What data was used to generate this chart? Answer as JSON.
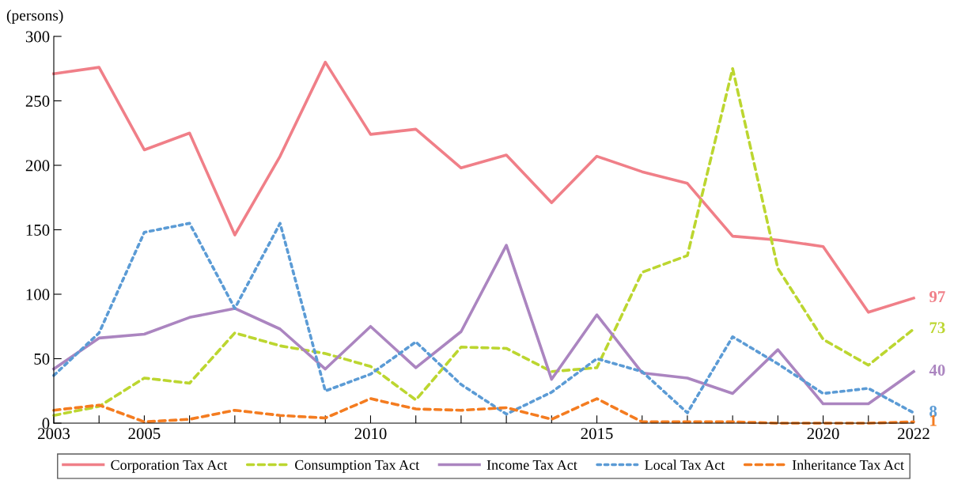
{
  "chart_data": {
    "type": "line",
    "ylabel": "(persons)",
    "x": [
      2003,
      2004,
      2005,
      2006,
      2007,
      2008,
      2009,
      2010,
      2011,
      2012,
      2013,
      2014,
      2015,
      2016,
      2017,
      2018,
      2019,
      2020,
      2021,
      2022
    ],
    "xlim": [
      2003,
      2022
    ],
    "xticks": [
      2003,
      {
        "value": 2004,
        "label": null
      },
      2005,
      {
        "value": 2006,
        "label": null
      },
      {
        "value": 2007,
        "label": null
      },
      {
        "value": 2008,
        "label": null
      },
      {
        "value": 2009,
        "label": null
      },
      2010,
      {
        "value": 2011,
        "label": null
      },
      {
        "value": 2012,
        "label": null
      },
      {
        "value": 2013,
        "label": null
      },
      {
        "value": 2014,
        "label": null
      },
      2015,
      {
        "value": 2016,
        "label": null
      },
      {
        "value": 2017,
        "label": null
      },
      {
        "value": 2018,
        "label": null
      },
      {
        "value": 2019,
        "label": null
      },
      2020,
      {
        "value": 2021,
        "label": null
      },
      2022
    ],
    "ylim": [
      0,
      300
    ],
    "yticks": [
      0,
      50,
      100,
      150,
      200,
      250,
      300
    ],
    "grid": false,
    "legend": "bottom",
    "marker": "none",
    "series": [
      {
        "name": "Corporation Tax Act",
        "color": "#f07f88",
        "line_style": "solid",
        "values": [
          271,
          276,
          212,
          225,
          146,
          207,
          280,
          224,
          228,
          198,
          208,
          171,
          207,
          195,
          186,
          145,
          142,
          137,
          86,
          97
        ],
        "value_labels": [
          null,
          null,
          null,
          null,
          null,
          null,
          null,
          null,
          null,
          null,
          null,
          null,
          null,
          null,
          null,
          null,
          null,
          null,
          null,
          "97"
        ]
      },
      {
        "name": "Consumption Tax Act",
        "color": "#bcd630",
        "line_style": "dashed",
        "values": [
          6,
          13,
          35,
          31,
          70,
          60,
          54,
          44,
          18,
          59,
          58,
          40,
          43,
          117,
          130,
          275,
          120,
          65,
          45,
          73
        ],
        "value_labels": [
          null,
          null,
          null,
          null,
          null,
          null,
          null,
          null,
          null,
          null,
          null,
          null,
          null,
          null,
          null,
          null,
          null,
          null,
          null,
          "73"
        ]
      },
      {
        "name": "Income Tax Act",
        "color": "#ab85c0",
        "line_style": "solid",
        "values": [
          42,
          66,
          69,
          82,
          89,
          73,
          42,
          75,
          43,
          71,
          138,
          34,
          84,
          39,
          35,
          23,
          57,
          15,
          15,
          40
        ],
        "value_labels": [
          null,
          null,
          null,
          null,
          null,
          null,
          null,
          null,
          null,
          null,
          null,
          null,
          null,
          null,
          null,
          null,
          null,
          null,
          null,
          "40"
        ]
      },
      {
        "name": "Local Tax Act",
        "color": "#5b9bd5",
        "line_style": "dotted",
        "values": [
          37,
          70,
          148,
          155,
          89,
          155,
          25,
          38,
          63,
          30,
          7,
          24,
          50,
          40,
          8,
          67,
          46,
          23,
          27,
          8
        ],
        "value_labels": [
          null,
          null,
          null,
          null,
          null,
          null,
          null,
          null,
          null,
          null,
          null,
          null,
          null,
          null,
          null,
          null,
          null,
          null,
          null,
          "8"
        ]
      },
      {
        "name": "Inheritance Tax Act",
        "color": "#f47c20",
        "line_style": "dashed",
        "values": [
          10,
          14,
          1,
          3,
          10,
          6,
          4,
          19,
          11,
          10,
          12,
          3,
          19,
          1,
          1,
          1,
          0,
          0,
          0,
          1
        ],
        "value_labels": [
          null,
          null,
          null,
          null,
          null,
          null,
          null,
          null,
          null,
          null,
          null,
          null,
          null,
          null,
          null,
          null,
          null,
          null,
          null,
          "1"
        ]
      }
    ]
  }
}
